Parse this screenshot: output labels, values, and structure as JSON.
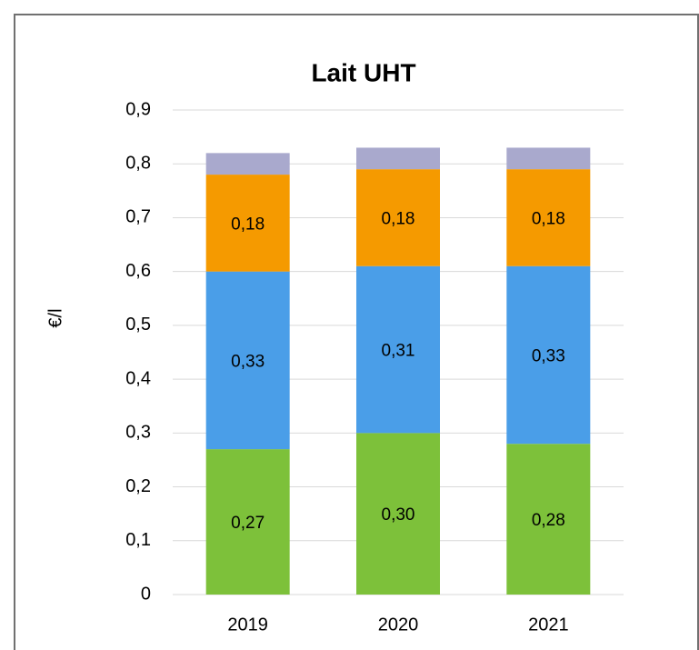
{
  "chart_data": {
    "type": "stacked_bar",
    "title": "Lait UHT",
    "y_label": "€/l",
    "categories": [
      "2019",
      "2020",
      "2021"
    ],
    "series": [
      {
        "color": "#7dc13a",
        "values": [
          0.27,
          0.3,
          0.28
        ],
        "value_labels": [
          "0,27",
          "0,30",
          "0,28"
        ]
      },
      {
        "color": "#4a9ee8",
        "values": [
          0.33,
          0.31,
          0.33
        ],
        "value_labels": [
          "0,33",
          "0,31",
          "0,33"
        ]
      },
      {
        "color": "#f59a00",
        "values": [
          0.18,
          0.18,
          0.18
        ],
        "value_labels": [
          "0,18",
          "0,18",
          "0,18"
        ]
      },
      {
        "color": "#a9a9cd",
        "values": [
          0.04,
          0.04,
          0.04
        ]
      }
    ],
    "ylim": [
      0,
      0.9
    ],
    "yticks": [
      0,
      {
        "value": 0.1,
        "label": "0,1"
      },
      {
        "value": 0.2,
        "label": "0,2"
      },
      {
        "value": 0.3,
        "label": "0,3"
      },
      {
        "value": 0.4,
        "label": "0,4"
      },
      {
        "value": 0.5,
        "label": "0,5"
      },
      {
        "value": 0.6,
        "label": "0,6"
      },
      {
        "value": 0.7,
        "label": "0,7"
      },
      {
        "value": 0.8,
        "label": "0,8"
      },
      {
        "value": 0.9,
        "label": "0,9"
      }
    ],
    "grid": true
  }
}
